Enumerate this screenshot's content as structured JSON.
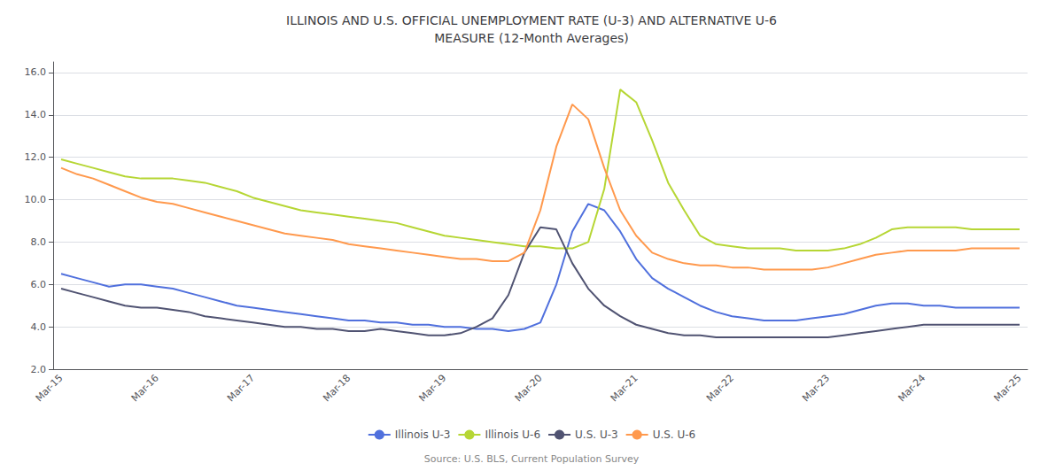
{
  "chart_data": {
    "type": "line",
    "title": "ILLINOIS AND U.S. OFFICIAL UNEMPLOYMENT RATE (U-3) AND ALTERNATIVE U-6\nMEASURE (12-Month Averages)",
    "annotations": [
      "Source: U.S. BLS, Current Population Survey"
    ],
    "categories": [
      "Mar-15",
      null,
      null,
      null,
      null,
      null,
      "Mar-16",
      null,
      null,
      null,
      null,
      null,
      "Mar-17",
      null,
      null,
      null,
      null,
      null,
      "Mar-18",
      null,
      null,
      null,
      null,
      null,
      "Mar-19",
      null,
      null,
      null,
      null,
      null,
      "Mar-20",
      null,
      null,
      null,
      null,
      null,
      "Mar-21",
      null,
      null,
      null,
      null,
      null,
      "Mar-22",
      null,
      null,
      null,
      null,
      null,
      "Mar-23",
      null,
      null,
      null,
      null,
      null,
      "Mar-24",
      null,
      null,
      null,
      null,
      null,
      "Mar-25"
    ],
    "series": [
      {
        "name": "Illinois U-3",
        "values": [
          6.5,
          6.3,
          6.1,
          5.9,
          6.0,
          6.0,
          5.9,
          5.8,
          5.6,
          5.4,
          5.2,
          5.0,
          4.9,
          4.8,
          4.7,
          4.6,
          4.5,
          4.4,
          4.3,
          4.3,
          4.2,
          4.2,
          4.1,
          4.1,
          4.0,
          4.0,
          3.9,
          3.9,
          3.8,
          3.9,
          4.2,
          6.0,
          8.5,
          9.8,
          9.5,
          8.5,
          7.2,
          6.3,
          5.8,
          5.4,
          5.0,
          4.7,
          4.5,
          4.4,
          4.3,
          4.3,
          4.3,
          4.4,
          4.5,
          4.6,
          4.8,
          5.0,
          5.1,
          5.1,
          5.0,
          5.0,
          4.9,
          4.9,
          4.9,
          4.9,
          4.9
        ]
      },
      {
        "name": "Illinois U-6",
        "values": [
          11.9,
          11.7,
          11.5,
          11.3,
          11.1,
          11.0,
          11.0,
          11.0,
          10.9,
          10.8,
          10.6,
          10.4,
          10.1,
          9.9,
          9.7,
          9.5,
          9.4,
          9.3,
          9.2,
          9.1,
          9.0,
          8.9,
          8.7,
          8.5,
          8.3,
          8.2,
          8.1,
          8.0,
          7.9,
          7.8,
          7.8,
          7.7,
          7.7,
          8.0,
          10.5,
          15.2,
          14.6,
          12.8,
          10.8,
          9.5,
          8.3,
          7.9,
          7.8,
          7.7,
          7.7,
          7.7,
          7.6,
          7.6,
          7.6,
          7.7,
          7.9,
          8.2,
          8.6,
          8.7,
          8.7,
          8.7,
          8.7,
          8.6,
          8.6,
          8.6,
          8.6
        ]
      },
      {
        "name": "U.S. U-3",
        "values": [
          5.8,
          5.6,
          5.4,
          5.2,
          5.0,
          4.9,
          4.9,
          4.8,
          4.7,
          4.5,
          4.4,
          4.3,
          4.2,
          4.1,
          4.0,
          4.0,
          3.9,
          3.9,
          3.8,
          3.8,
          3.9,
          3.8,
          3.7,
          3.6,
          3.6,
          3.7,
          4.0,
          4.4,
          5.5,
          7.5,
          8.7,
          8.6,
          7.0,
          5.8,
          5.0,
          4.5,
          4.1,
          3.9,
          3.7,
          3.6,
          3.6,
          3.5,
          3.5,
          3.5,
          3.5,
          3.5,
          3.5,
          3.5,
          3.5,
          3.6,
          3.7,
          3.8,
          3.9,
          4.0,
          4.1,
          4.1,
          4.1,
          4.1,
          4.1,
          4.1,
          4.1
        ]
      },
      {
        "name": "U.S. U-6",
        "values": [
          11.5,
          11.2,
          11.0,
          10.7,
          10.4,
          10.1,
          9.9,
          9.8,
          9.6,
          9.4,
          9.2,
          9.0,
          8.8,
          8.6,
          8.4,
          8.3,
          8.2,
          8.1,
          7.9,
          7.8,
          7.7,
          7.6,
          7.5,
          7.4,
          7.3,
          7.2,
          7.2,
          7.1,
          7.1,
          7.5,
          9.5,
          12.5,
          14.5,
          13.8,
          11.5,
          9.5,
          8.3,
          7.5,
          7.2,
          7.0,
          6.9,
          6.9,
          6.8,
          6.8,
          6.7,
          6.7,
          6.7,
          6.7,
          6.8,
          7.0,
          7.2,
          7.4,
          7.5,
          7.6,
          7.6,
          7.6,
          7.6,
          7.7,
          7.7,
          7.7,
          7.7
        ]
      }
    ],
    "ylim": [
      2.0,
      16.5
    ],
    "yticks": [
      {
        "value": 2,
        "label": "2.0"
      },
      {
        "value": 4,
        "label": "4.0"
      },
      {
        "value": 6,
        "label": "6.0"
      },
      {
        "value": 8,
        "label": "8.0"
      },
      {
        "value": 10,
        "label": "10.0"
      },
      {
        "value": 12,
        "label": "12.0"
      },
      {
        "value": 14,
        "label": "14.0"
      },
      {
        "value": 16,
        "label": "16.0"
      }
    ],
    "grid": true,
    "legend": "bottom"
  }
}
